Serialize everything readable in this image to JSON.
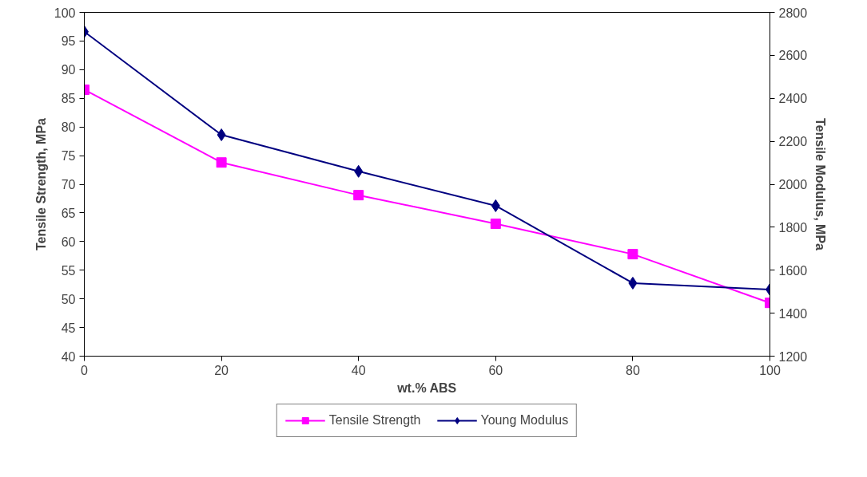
{
  "chart_data": {
    "type": "line",
    "xlabel": "wt.% ABS",
    "ylabel": "Tensile Strength, MPa",
    "y2label": "Tensile Modulus, MPa",
    "x": [
      0,
      20,
      40,
      60,
      80,
      100
    ],
    "xlim": [
      0,
      100
    ],
    "xticks": [
      0,
      20,
      40,
      60,
      80,
      100
    ],
    "ylim": [
      40,
      100
    ],
    "yticks": [
      40,
      45,
      50,
      55,
      60,
      65,
      70,
      75,
      80,
      85,
      90,
      95,
      100
    ],
    "y2lim": [
      1200,
      2800
    ],
    "y2ticks": [
      1200,
      1400,
      1600,
      1800,
      2000,
      2200,
      2400,
      2600,
      2800
    ],
    "grid": false,
    "legend": "bottom",
    "series": [
      {
        "name": "Tensile Strength",
        "color": "#ff00ff",
        "marker": "square",
        "values": [
          86.5,
          73.8,
          68.1,
          63.1,
          57.8,
          49.3
        ]
      },
      {
        "name": "Young Modulus",
        "color": "#000080",
        "marker": "diamond",
        "axis": "y2",
        "values": [
          2710,
          2230,
          2060,
          1900,
          1540,
          1510
        ]
      }
    ]
  }
}
